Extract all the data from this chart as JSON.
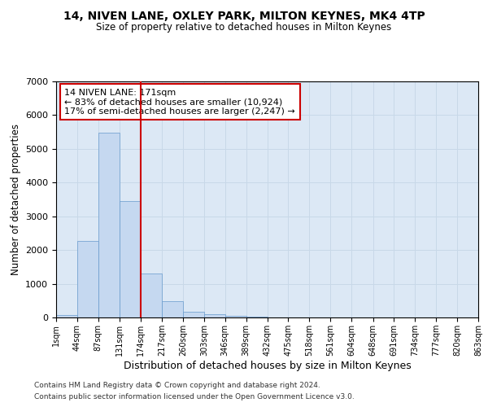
{
  "title": "14, NIVEN LANE, OXLEY PARK, MILTON KEYNES, MK4 4TP",
  "subtitle": "Size of property relative to detached houses in Milton Keynes",
  "xlabel": "Distribution of detached houses by size in Milton Keynes",
  "ylabel": "Number of detached properties",
  "bin_edges": [
    1,
    44,
    87,
    131,
    174,
    217,
    260,
    303,
    346,
    389,
    432,
    475,
    518,
    561,
    604,
    648,
    691,
    734,
    777,
    820,
    863
  ],
  "bar_heights": [
    80,
    2280,
    5480,
    3460,
    1310,
    480,
    160,
    90,
    55,
    20,
    10,
    5,
    3,
    2,
    1,
    1,
    0,
    0,
    0,
    0
  ],
  "bar_color": "#c5d8f0",
  "bar_edge_color": "#6699cc",
  "vline_x": 174,
  "vline_color": "#cc0000",
  "annotation_text": "14 NIVEN LANE: 171sqm\n← 83% of detached houses are smaller (10,924)\n17% of semi-detached houses are larger (2,247) →",
  "annotation_box_color": "#ffffff",
  "annotation_box_edge": "#cc0000",
  "ylim": [
    0,
    7000
  ],
  "yticks": [
    0,
    1000,
    2000,
    3000,
    4000,
    5000,
    6000,
    7000
  ],
  "grid_color": "#c8d8e8",
  "background_color": "#dce8f5",
  "footer_line1": "Contains HM Land Registry data © Crown copyright and database right 2024.",
  "footer_line2": "Contains public sector information licensed under the Open Government Licence v3.0.",
  "tick_labels": [
    "1sqm",
    "44sqm",
    "87sqm",
    "131sqm",
    "174sqm",
    "217sqm",
    "260sqm",
    "303sqm",
    "346sqm",
    "389sqm",
    "432sqm",
    "475sqm",
    "518sqm",
    "561sqm",
    "604sqm",
    "648sqm",
    "691sqm",
    "734sqm",
    "777sqm",
    "820sqm",
    "863sqm"
  ]
}
